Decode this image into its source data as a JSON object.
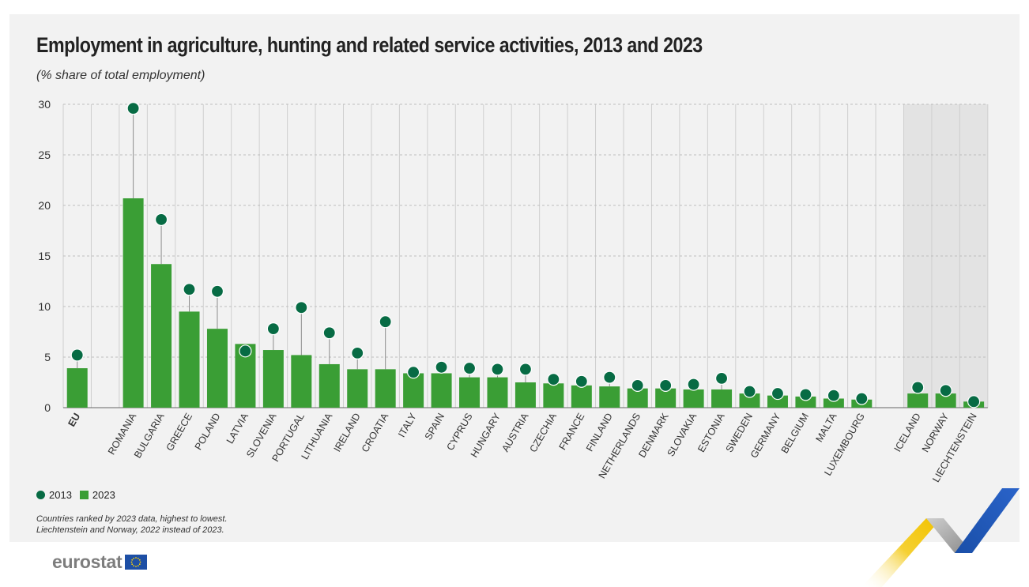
{
  "title": "Employment in agriculture, hunting and related service activities, 2013 and 2023",
  "subtitle": "(% share of total employment)",
  "legend": {
    "series_2013": "2013",
    "series_2023": "2023"
  },
  "notes": {
    "line1": "Countries ranked by 2023 data, highest to lowest.",
    "line2": "Liechtenstein and Norway, 2022 instead of 2023."
  },
  "logo": {
    "text": "eurostat"
  },
  "colors": {
    "bar_2023": "#3a9e35",
    "dot_2013": "#076b44",
    "panel_bg": "#f2f2f2",
    "shaded_group_bg": "#e3e3e3"
  },
  "chart_data": {
    "type": "bar",
    "categories": [
      "EU",
      "",
      "ROMANIA",
      "BULGARIA",
      "GREECE",
      "POLAND",
      "LATVIA",
      "SLOVENIA",
      "PORTUGAL",
      "LITHUANIA",
      "IRELAND",
      "CROATIA",
      "ITALY",
      "SPAIN",
      "CYPRUS",
      "HUNGARY",
      "AUSTRIA",
      "CZECHIA",
      "FRANCE",
      "FINLAND",
      "NETHERLANDS",
      "DENMARK",
      "SLOVAKIA",
      "ESTONIA",
      "SWEDEN",
      "GERMANY",
      "BELGIUM",
      "MALTA",
      "LUXEMBOURG",
      "",
      "ICELAND",
      "NORWAY",
      "LIECHTENSTEIN"
    ],
    "series": [
      {
        "name": "2013",
        "marker": "dot",
        "values": [
          5.2,
          null,
          29.6,
          18.6,
          11.7,
          11.5,
          5.6,
          7.8,
          9.9,
          7.4,
          5.4,
          8.5,
          3.5,
          4.0,
          3.9,
          3.8,
          3.8,
          2.8,
          2.6,
          3.0,
          2.2,
          2.2,
          2.3,
          2.9,
          1.6,
          1.4,
          1.3,
          1.2,
          0.9,
          null,
          2.0,
          1.7,
          0.6
        ]
      },
      {
        "name": "2023",
        "marker": "bar",
        "values": [
          3.9,
          null,
          20.7,
          14.2,
          9.5,
          7.8,
          6.3,
          5.7,
          5.2,
          4.3,
          3.8,
          3.8,
          3.4,
          3.4,
          3.0,
          3.0,
          2.5,
          2.4,
          2.2,
          2.1,
          1.9,
          1.9,
          1.8,
          1.8,
          1.4,
          1.2,
          1.1,
          0.9,
          0.8,
          null,
          1.4,
          1.4,
          0.6
        ]
      }
    ],
    "yticks": [
      0,
      5,
      10,
      15,
      20,
      25,
      30
    ],
    "ylim": [
      0,
      30
    ],
    "grid": true,
    "shaded_group": [
      "ICELAND",
      "NORWAY",
      "LIECHTENSTEIN"
    ],
    "highlighted_category": "EU",
    "legend_position": "bottom-left"
  }
}
